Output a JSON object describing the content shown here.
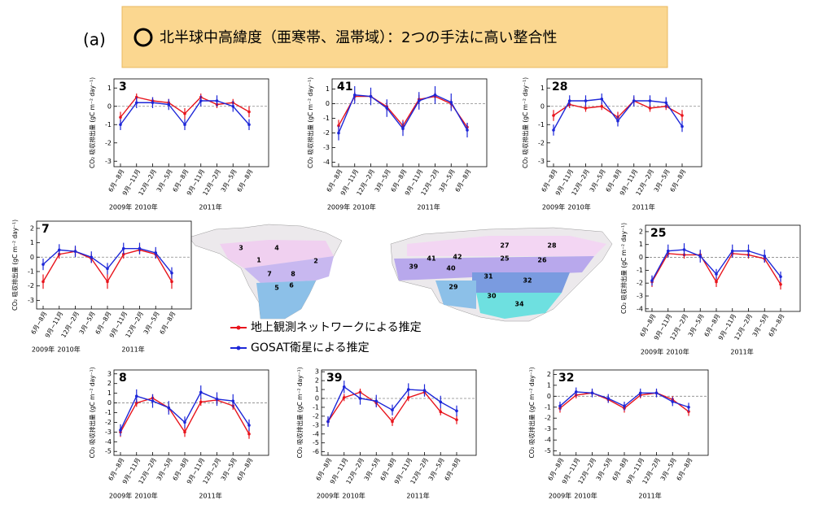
{
  "header": {
    "panel": "(a)",
    "title": "北半球中高緯度（亜寒帯、温帯域）：2つの手法に高い整合性"
  },
  "map": {
    "region_labels": [
      "3",
      "4",
      "1",
      "2",
      "7",
      "8",
      "5",
      "6",
      "27",
      "28",
      "41",
      "42",
      "25",
      "26",
      "39",
      "40",
      "31",
      "32",
      "29",
      "30",
      "34"
    ]
  },
  "chart_data": [
    {
      "type": "line",
      "title": "3",
      "y_label": "CO₂ 吸収排出量 (gC m⁻² day⁻¹)",
      "categories": [
        "6月−8月",
        "9月−11月",
        "12月−2月",
        "3月−5月",
        "6月−8月",
        "9月−11月",
        "12月−2月",
        "3月−5月",
        "6月−8月"
      ],
      "x_group_labels": [
        "2009年",
        "2010年",
        "2011年"
      ],
      "ylim": [
        -3.3,
        1.5
      ],
      "yticks": [
        -3,
        -2,
        -1,
        0,
        1
      ],
      "series": [
        {
          "name": "地上観測ネットワークによる推定",
          "color": "#e8141c",
          "values": [
            -0.6,
            0.5,
            0.3,
            0.2,
            -0.4,
            0.5,
            0.1,
            0.2,
            -0.3
          ],
          "errors": [
            0.3,
            0.2,
            0.2,
            0.2,
            0.3,
            0.2,
            0.2,
            0.2,
            0.3
          ]
        },
        {
          "name": "GOSAT衛星による推定",
          "color": "#1d27d8",
          "values": [
            -1.0,
            0.2,
            0.2,
            0.1,
            -1.0,
            0.3,
            0.3,
            0.0,
            -1.0
          ],
          "errors": [
            0.3,
            0.3,
            0.3,
            0.3,
            0.3,
            0.3,
            0.3,
            0.3,
            0.3
          ]
        }
      ]
    },
    {
      "type": "line",
      "title": "41",
      "y_label": "CO₂ 吸収排出量 (gC m⁻² day⁻¹)",
      "categories": [
        "6月−8月",
        "9月−11月",
        "12月−2月",
        "3月−5月",
        "6月−8月",
        "9月−11月",
        "12月−2月",
        "3月−5月",
        "6月−8月"
      ],
      "x_group_labels": [
        "2009年",
        "2010年",
        "2011年"
      ],
      "ylim": [
        -4.3,
        1.7
      ],
      "yticks": [
        -4,
        -3,
        -2,
        -1,
        0,
        1
      ],
      "series": [
        {
          "color": "#e8141c",
          "values": [
            -1.5,
            0.5,
            0.5,
            -0.2,
            -1.5,
            0.3,
            0.5,
            0.0,
            -1.6
          ],
          "errors": [
            0.4,
            0.3,
            0.3,
            0.3,
            0.4,
            0.3,
            0.3,
            0.3,
            0.3
          ]
        },
        {
          "color": "#1d27d8",
          "values": [
            -2.0,
            0.6,
            0.5,
            -0.3,
            -1.7,
            0.2,
            0.6,
            0.1,
            -1.8
          ],
          "errors": [
            0.5,
            0.6,
            0.6,
            0.6,
            0.5,
            0.6,
            0.6,
            0.6,
            0.5
          ]
        }
      ]
    },
    {
      "type": "line",
      "title": "28",
      "y_label": "CO₂ 吸収排出量 (gC m⁻² day⁻¹)",
      "categories": [
        "6月−8月",
        "9月−11月",
        "12月−2月",
        "3月−5月",
        "6月−8月",
        "9月−11月",
        "12月−2月",
        "3月−5月",
        "6月−8月"
      ],
      "x_group_labels": [
        "2009年",
        "2010年",
        "2011年"
      ],
      "ylim": [
        -3.3,
        1.5
      ],
      "yticks": [
        -3,
        -2,
        -1,
        0,
        1
      ],
      "series": [
        {
          "color": "#e8141c",
          "values": [
            -0.5,
            0.1,
            -0.1,
            0.0,
            -0.6,
            0.3,
            -0.1,
            0.0,
            -0.5
          ],
          "errors": [
            0.3,
            0.2,
            0.2,
            0.2,
            0.3,
            0.2,
            0.2,
            0.2,
            0.3
          ]
        },
        {
          "color": "#1d27d8",
          "values": [
            -1.3,
            0.3,
            0.3,
            0.4,
            -0.8,
            0.3,
            0.3,
            0.2,
            -1.1
          ],
          "errors": [
            0.3,
            0.3,
            0.3,
            0.3,
            0.3,
            0.3,
            0.3,
            0.3,
            0.3
          ]
        }
      ]
    },
    {
      "type": "line",
      "title": "7",
      "y_label": "CO₂ 吸収排出量 (gC m⁻² day⁻¹)",
      "categories": [
        "6月−8月",
        "9月−11月",
        "12月−2月",
        "3月−5月",
        "6月−8月",
        "9月−11月",
        "12月−2月",
        "3月−5月",
        "6月−8月"
      ],
      "x_group_labels": [
        "2009年",
        "2010年",
        "2011年"
      ],
      "ylim": [
        -3.6,
        2.5
      ],
      "yticks": [
        -3,
        -2,
        -1,
        0,
        1,
        2
      ],
      "series": [
        {
          "color": "#e8141c",
          "values": [
            -1.7,
            0.2,
            0.4,
            -0.1,
            -1.7,
            0.2,
            0.5,
            0.2,
            -1.7
          ],
          "errors": [
            0.5,
            0.3,
            0.3,
            0.3,
            0.5,
            0.3,
            0.3,
            0.3,
            0.5
          ]
        },
        {
          "color": "#1d27d8",
          "values": [
            -0.5,
            0.5,
            0.4,
            0.0,
            -0.8,
            0.6,
            0.6,
            0.3,
            -1.1
          ],
          "errors": [
            0.4,
            0.4,
            0.4,
            0.4,
            0.4,
            0.4,
            0.4,
            0.4,
            0.4
          ]
        }
      ]
    },
    {
      "type": "line",
      "title": "25",
      "y_label": "CO₂ 吸収排出量 (gC m⁻² day⁻¹)",
      "categories": [
        "6月−8月",
        "9月−11月",
        "12月−2月",
        "3月−5月",
        "6月−8月",
        "9月−11月",
        "12月−2月",
        "3月−5月",
        "6月−8月"
      ],
      "x_group_labels": [
        "2009年",
        "2010年",
        "2011年"
      ],
      "ylim": [
        -4.2,
        2.5
      ],
      "yticks": [
        -4,
        -3,
        -2,
        -1,
        0,
        1,
        2
      ],
      "series": [
        {
          "color": "#e8141c",
          "values": [
            -1.9,
            0.3,
            0.2,
            0.2,
            -1.9,
            0.3,
            0.2,
            -0.1,
            -2.1
          ],
          "errors": [
            0.4,
            0.3,
            0.3,
            0.3,
            0.4,
            0.3,
            0.3,
            0.3,
            0.4
          ]
        },
        {
          "color": "#1d27d8",
          "values": [
            -1.8,
            0.5,
            0.6,
            0.1,
            -1.3,
            0.5,
            0.5,
            0.1,
            -1.5
          ],
          "errors": [
            0.4,
            0.5,
            0.5,
            0.5,
            0.4,
            0.5,
            0.5,
            0.5,
            0.4
          ]
        }
      ]
    },
    {
      "type": "line",
      "title": "8",
      "y_label": "CO₂ 吸収排出量 (gC m⁻² day⁻¹)",
      "categories": [
        "6月−8月",
        "9月−11月",
        "12月−2月",
        "3月−5月",
        "6月−8月",
        "9月−11月",
        "12月−2月",
        "3月−5月",
        "6月−8月"
      ],
      "x_group_labels": [
        "2009年",
        "2010年",
        "2011年"
      ],
      "ylim": [
        -5.4,
        3.4
      ],
      "yticks": [
        -5,
        -4,
        -3,
        -2,
        -1,
        0,
        1,
        2,
        3
      ],
      "series": [
        {
          "color": "#e8141c",
          "values": [
            -3.0,
            0.0,
            0.5,
            -0.5,
            -3.0,
            0.1,
            0.3,
            -0.3,
            -3.2
          ],
          "errors": [
            0.5,
            0.4,
            0.4,
            0.4,
            0.5,
            0.4,
            0.4,
            0.4,
            0.5
          ]
        },
        {
          "color": "#1d27d8",
          "values": [
            -2.8,
            0.7,
            0.2,
            -0.5,
            -2.0,
            1.1,
            0.4,
            0.2,
            -2.3
          ],
          "errors": [
            0.6,
            0.7,
            0.7,
            0.7,
            0.6,
            0.7,
            0.7,
            0.7,
            0.6
          ]
        }
      ]
    },
    {
      "type": "line",
      "title": "39",
      "y_label": "CO₂ 吸収排出量 (gC m⁻² day⁻¹)",
      "categories": [
        "6月−8月",
        "9月−11月",
        "12月−2月",
        "3月−5月",
        "6月−8月",
        "9月−11月",
        "12月−2月",
        "3月−5月",
        "6月−8月"
      ],
      "x_group_labels": [
        "2009年",
        "2010年",
        "2011年"
      ],
      "ylim": [
        -6.4,
        3.2
      ],
      "yticks": [
        -6,
        -5,
        -4,
        -3,
        -2,
        -1,
        0,
        1,
        2,
        3
      ],
      "series": [
        {
          "color": "#e8141c",
          "values": [
            -2.6,
            0.1,
            0.7,
            -0.5,
            -2.6,
            0.1,
            0.7,
            -1.5,
            -2.4
          ],
          "errors": [
            0.5,
            0.4,
            0.4,
            0.4,
            0.5,
            0.4,
            0.4,
            0.4,
            0.5
          ]
        },
        {
          "color": "#1d27d8",
          "values": [
            -2.6,
            1.3,
            0.0,
            -0.3,
            -1.3,
            1.0,
            0.9,
            -0.4,
            -1.4
          ],
          "errors": [
            0.6,
            0.7,
            0.7,
            0.7,
            0.6,
            0.7,
            0.7,
            0.7,
            0.6
          ]
        }
      ]
    },
    {
      "type": "line",
      "title": "32",
      "y_label": "CO₂ 吸収排出量 (gC m⁻² day⁻¹)",
      "categories": [
        "6月−8月",
        "9月−11月",
        "12月−2月",
        "3月−5月",
        "6月−8月",
        "9月−11月",
        "12月−2月",
        "3月−5月",
        "6月−8月"
      ],
      "x_group_labels": [
        "2009年",
        "2010年",
        "2011年"
      ],
      "ylim": [
        -5.4,
        2.4
      ],
      "yticks": [
        -5,
        -4,
        -3,
        -2,
        -1,
        0,
        1,
        2
      ],
      "series": [
        {
          "color": "#e8141c",
          "values": [
            -1.1,
            0.1,
            0.3,
            -0.3,
            -1.1,
            0.1,
            0.3,
            -0.3,
            -1.4
          ],
          "errors": [
            0.4,
            0.3,
            0.3,
            0.3,
            0.4,
            0.3,
            0.3,
            0.3,
            0.4
          ]
        },
        {
          "color": "#1d27d8",
          "values": [
            -0.9,
            0.4,
            0.3,
            -0.2,
            -0.9,
            0.3,
            0.3,
            -0.5,
            -1.0
          ],
          "errors": [
            0.4,
            0.4,
            0.4,
            0.4,
            0.4,
            0.4,
            0.4,
            0.4,
            0.4
          ]
        }
      ]
    }
  ]
}
